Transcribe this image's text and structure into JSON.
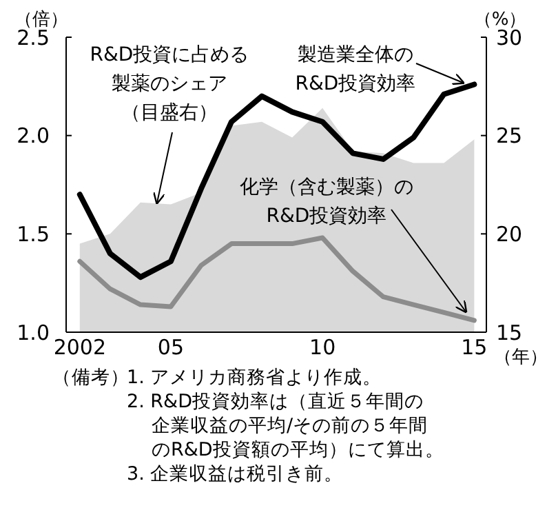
{
  "chart_data": {
    "type": "line",
    "xlabel": "（年）",
    "ylabel": "（倍）",
    "y2label": "（%）",
    "x": [
      2002,
      2003,
      2004,
      2005,
      2006,
      2007,
      2008,
      2009,
      2010,
      2011,
      2012,
      2013,
      2014,
      2015
    ],
    "xlim": [
      2001.55,
      2015.4
    ],
    "xticks": [
      {
        "value": 2002,
        "label": "2002"
      },
      {
        "value": 2005,
        "label": "05"
      },
      {
        "value": 2010,
        "label": "10"
      },
      {
        "value": 2015,
        "label": "15"
      }
    ],
    "ylim": [
      1.0,
      2.5
    ],
    "yticks": [
      {
        "value": 1.0,
        "label": "1.0"
      },
      {
        "value": 1.5,
        "label": "1.5"
      },
      {
        "value": 2.0,
        "label": "2.0"
      },
      {
        "value": 2.5,
        "label": "2.5"
      }
    ],
    "y2lim": [
      15,
      30
    ],
    "y2ticks": [
      15,
      20,
      25,
      30
    ],
    "series": [
      {
        "name": "R&D投資に占める製薬のシェア（目盛右）",
        "type": "area",
        "axis": "y2",
        "color": "#d9d9d9",
        "values": [
          19.5,
          20.0,
          21.6,
          21.5,
          22.1,
          25.5,
          25.7,
          24.9,
          26.4,
          24.2,
          24.1,
          23.6,
          23.6,
          24.8
        ]
      },
      {
        "name": "製造業全体のR&D投資効率",
        "color": "#000000",
        "values": [
          1.7,
          1.4,
          1.28,
          1.36,
          1.73,
          2.07,
          2.2,
          2.12,
          2.07,
          1.91,
          1.88,
          1.99,
          2.21,
          2.26
        ]
      },
      {
        "name": "化学（含む製薬）のR&D投資効率",
        "color": "#8c8c8c",
        "values": [
          1.36,
          1.22,
          1.14,
          1.13,
          1.34,
          1.45,
          1.45,
          1.45,
          1.48,
          1.31,
          1.18,
          1.14,
          1.1,
          1.06
        ]
      }
    ],
    "annotations": [
      "（備考）",
      "1. アメリカ商務省より作成。",
      "2. R&D投資効率は（直近５年間の企業収益の平均/その前の５年間のR&D投資額の平均）にて算出。",
      "3. 企業収益は税引き前。"
    ]
  }
}
